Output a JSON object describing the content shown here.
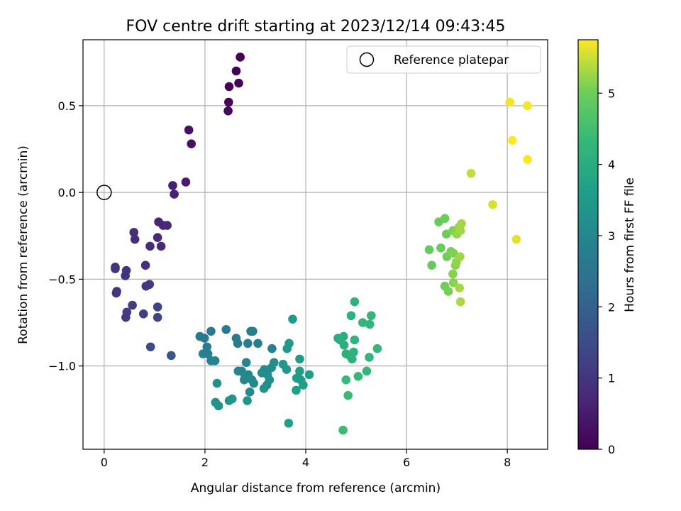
{
  "chart_data": {
    "type": "scatter",
    "title": "FOV centre drift starting at 2023/12/14 09:43:45",
    "xlabel": "Angular distance from reference (arcmin)",
    "ylabel": "Rotation from reference (arcmin)",
    "xlim": [
      -0.42,
      8.8
    ],
    "ylim": [
      -1.48,
      0.88
    ],
    "xticks": [
      0,
      2,
      4,
      6,
      8
    ],
    "xtick_labels": [
      "0",
      "2",
      "4",
      "6",
      "8"
    ],
    "yticks": [
      -1.0,
      -0.5,
      0.0,
      0.5
    ],
    "ytick_labels": [
      "−1.0",
      "−0.5",
      "0.0",
      "0.5"
    ],
    "grid": true,
    "legend": {
      "position": "top-right",
      "entries": [
        "Reference platepar"
      ]
    },
    "reference": {
      "x": 0,
      "y": 0
    },
    "colorbar": {
      "label": "Hours from first FF file",
      "range": [
        0,
        5.75
      ],
      "ticks": [
        0,
        1,
        2,
        3,
        4,
        5
      ],
      "tick_labels": [
        "0",
        "1",
        "2",
        "3",
        "4",
        "5"
      ],
      "colormap": "viridis"
    },
    "points": [
      [
        2.7,
        0.78,
        0.02
      ],
      [
        2.62,
        0.7,
        0.04
      ],
      [
        2.67,
        0.63,
        0.06
      ],
      [
        2.48,
        0.61,
        0.08
      ],
      [
        2.47,
        0.52,
        0.1
      ],
      [
        2.46,
        0.47,
        0.12
      ],
      [
        1.68,
        0.36,
        0.3
      ],
      [
        1.73,
        0.28,
        0.32
      ],
      [
        1.62,
        0.06,
        0.5
      ],
      [
        1.36,
        0.04,
        0.6
      ],
      [
        1.39,
        -0.01,
        0.62
      ],
      [
        1.08,
        -0.17,
        0.7
      ],
      [
        1.17,
        -0.19,
        0.72
      ],
      [
        1.25,
        -0.19,
        0.74
      ],
      [
        1.06,
        -0.26,
        0.76
      ],
      [
        1.13,
        -0.31,
        0.78
      ],
      [
        0.91,
        -0.31,
        0.8
      ],
      [
        0.59,
        -0.23,
        0.84
      ],
      [
        0.61,
        -0.27,
        0.86
      ],
      [
        0.82,
        -0.42,
        0.9
      ],
      [
        0.44,
        -0.45,
        0.92
      ],
      [
        0.42,
        -0.48,
        0.94
      ],
      [
        0.22,
        -0.43,
        0.96
      ],
      [
        0.22,
        -0.44,
        0.98
      ],
      [
        0.83,
        -0.54,
        1.0
      ],
      [
        0.9,
        -0.53,
        1.1
      ],
      [
        0.25,
        -0.57,
        1.05
      ],
      [
        0.24,
        -0.58,
        1.06
      ],
      [
        0.78,
        -0.7,
        1.2
      ],
      [
        1.06,
        -0.66,
        1.3
      ],
      [
        1.06,
        -0.72,
        1.32
      ],
      [
        0.45,
        -0.69,
        1.15
      ],
      [
        0.43,
        -0.72,
        1.18
      ],
      [
        0.56,
        -0.65,
        1.22
      ],
      [
        0.92,
        -0.89,
        1.5
      ],
      [
        1.33,
        -0.94,
        1.75
      ],
      [
        1.9,
        -0.83,
        2.6
      ],
      [
        1.99,
        -0.84,
        2.62
      ],
      [
        2.04,
        -0.89,
        2.64
      ],
      [
        2.12,
        -0.8,
        2.66
      ],
      [
        2.42,
        -0.79,
        2.68
      ],
      [
        2.62,
        -0.84,
        2.7
      ],
      [
        2.65,
        -0.87,
        2.72
      ],
      [
        2.85,
        -0.87,
        2.74
      ],
      [
        2.91,
        -0.8,
        2.76
      ],
      [
        2.95,
        -0.8,
        2.78
      ],
      [
        3.05,
        -0.87,
        2.8
      ],
      [
        3.33,
        -0.9,
        2.82
      ],
      [
        1.96,
        -0.93,
        2.84
      ],
      [
        2.06,
        -0.93,
        2.86
      ],
      [
        2.12,
        -0.97,
        2.88
      ],
      [
        2.2,
        -0.97,
        2.9
      ],
      [
        2.82,
        -0.98,
        2.92
      ],
      [
        2.66,
        -1.03,
        2.94
      ],
      [
        2.73,
        -1.03,
        2.96
      ],
      [
        2.79,
        -1.05,
        2.98
      ],
      [
        2.86,
        -1.05,
        3.0
      ],
      [
        2.93,
        -1.08,
        3.02
      ],
      [
        2.78,
        -1.08,
        3.04
      ],
      [
        2.97,
        -1.1,
        3.06
      ],
      [
        2.89,
        -1.15,
        3.08
      ],
      [
        3.13,
        -1.04,
        3.1
      ],
      [
        3.18,
        -1.02,
        3.12
      ],
      [
        3.24,
        -1.05,
        3.14
      ],
      [
        3.32,
        -1.01,
        3.16
      ],
      [
        3.37,
        -0.98,
        3.18
      ],
      [
        3.28,
        -1.08,
        3.2
      ],
      [
        3.23,
        -1.11,
        3.22
      ],
      [
        3.17,
        -1.13,
        3.24
      ],
      [
        2.24,
        -1.1,
        3.26
      ],
      [
        2.21,
        -1.21,
        3.28
      ],
      [
        2.27,
        -1.23,
        3.3
      ],
      [
        2.48,
        -1.2,
        3.32
      ],
      [
        2.54,
        -1.19,
        3.34
      ],
      [
        2.84,
        -1.2,
        3.36
      ],
      [
        3.55,
        -0.99,
        3.4
      ],
      [
        3.62,
        -1.02,
        3.42
      ],
      [
        3.63,
        -0.9,
        3.44
      ],
      [
        3.67,
        -0.87,
        3.46
      ],
      [
        3.74,
        -0.73,
        3.5
      ],
      [
        3.88,
        -0.96,
        3.52
      ],
      [
        3.88,
        -1.03,
        3.54
      ],
      [
        3.82,
        -1.07,
        3.56
      ],
      [
        3.9,
        -1.08,
        3.58
      ],
      [
        3.95,
        -1.11,
        3.6
      ],
      [
        4.07,
        -1.05,
        3.62
      ],
      [
        3.81,
        -1.14,
        3.64
      ],
      [
        3.66,
        -1.33,
        3.66
      ],
      [
        4.64,
        -0.84,
        4.0
      ],
      [
        4.68,
        -0.85,
        4.02
      ],
      [
        4.75,
        -0.83,
        4.04
      ],
      [
        4.76,
        -0.88,
        4.06
      ],
      [
        4.8,
        -0.93,
        4.08
      ],
      [
        4.87,
        -0.94,
        4.1
      ],
      [
        4.92,
        -0.96,
        4.12
      ],
      [
        4.95,
        -0.92,
        4.14
      ],
      [
        4.9,
        -0.71,
        4.16
      ],
      [
        4.97,
        -0.63,
        4.18
      ],
      [
        4.97,
        -0.85,
        4.2
      ],
      [
        5.13,
        -0.75,
        4.22
      ],
      [
        5.27,
        -0.76,
        4.24
      ],
      [
        5.3,
        -0.71,
        4.26
      ],
      [
        5.26,
        -0.95,
        4.28
      ],
      [
        5.42,
        -0.9,
        4.3
      ],
      [
        5.21,
        -1.03,
        4.32
      ],
      [
        5.04,
        -1.06,
        4.34
      ],
      [
        4.8,
        -1.08,
        4.36
      ],
      [
        4.84,
        -1.17,
        4.38
      ],
      [
        4.74,
        -1.37,
        4.4
      ],
      [
        6.45,
        -0.33,
        4.9
      ],
      [
        6.5,
        -0.42,
        4.92
      ],
      [
        6.64,
        -0.17,
        4.94
      ],
      [
        6.68,
        -0.32,
        4.96
      ],
      [
        6.76,
        -0.15,
        4.98
      ],
      [
        6.79,
        -0.24,
        5.0
      ],
      [
        6.8,
        -0.37,
        5.02
      ],
      [
        6.76,
        -0.54,
        5.04
      ],
      [
        6.83,
        -0.57,
        5.06
      ],
      [
        6.88,
        -0.34,
        5.08
      ],
      [
        6.92,
        -0.22,
        5.1
      ],
      [
        6.93,
        -0.35,
        5.12
      ],
      [
        6.92,
        -0.47,
        5.14
      ],
      [
        6.93,
        -0.52,
        5.16
      ],
      [
        6.97,
        -0.42,
        5.18
      ],
      [
        6.99,
        -0.4,
        5.2
      ],
      [
        7.0,
        -0.24,
        5.22
      ],
      [
        7.04,
        -0.2,
        5.24
      ],
      [
        7.06,
        -0.37,
        5.26
      ],
      [
        7.07,
        -0.22,
        5.28
      ],
      [
        7.09,
        -0.18,
        5.3
      ],
      [
        7.05,
        -0.55,
        5.32
      ],
      [
        7.07,
        -0.63,
        5.34
      ],
      [
        7.28,
        0.11,
        5.45
      ],
      [
        7.71,
        -0.07,
        5.55
      ],
      [
        8.18,
        -0.27,
        5.6
      ],
      [
        8.05,
        0.52,
        5.7
      ],
      [
        8.4,
        0.5,
        5.72
      ],
      [
        8.1,
        0.3,
        5.74
      ],
      [
        8.4,
        0.19,
        5.75
      ]
    ]
  }
}
